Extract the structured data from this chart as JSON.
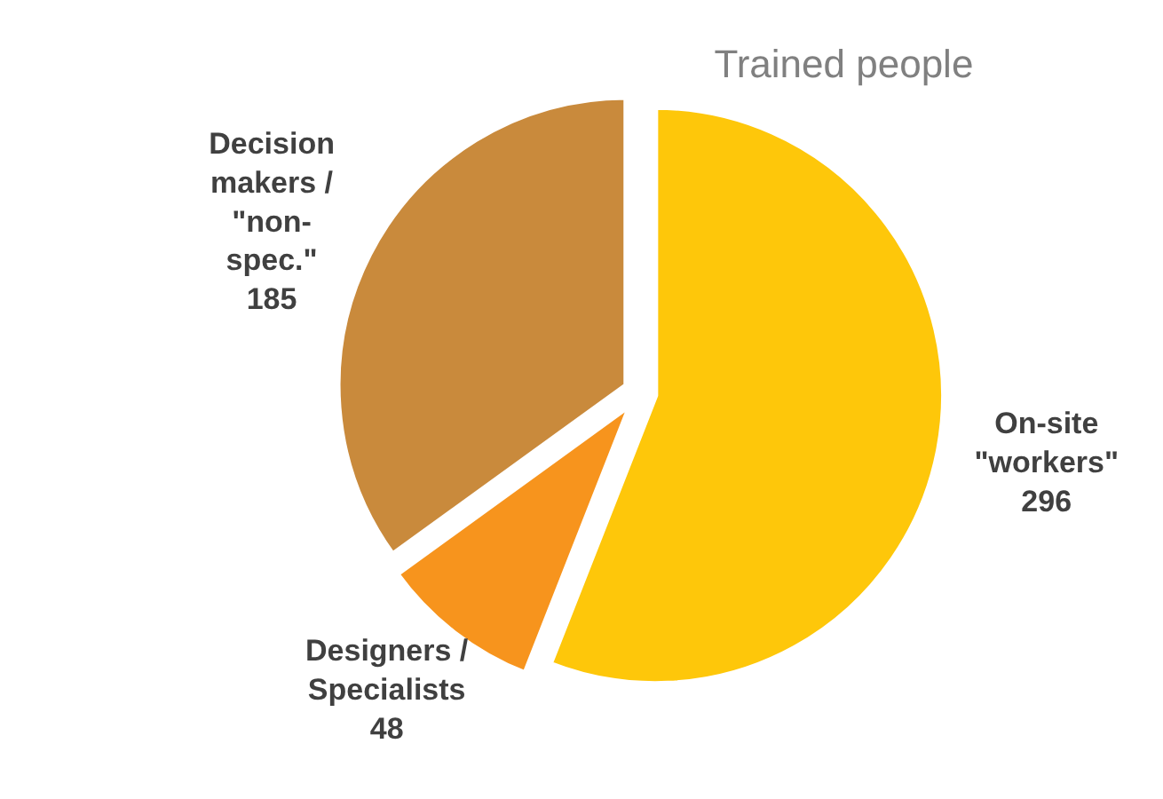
{
  "chart_data": {
    "type": "pie",
    "title": "Trained people",
    "categories": [
      "On-site\n\"workers\"",
      "Designers /\nSpecialists",
      "Decision\nmakers /\n\"non-\nspec.\""
    ],
    "values": [
      296,
      48,
      185
    ],
    "colors": [
      "#fec70a",
      "#f7941d",
      "#c98a3c"
    ],
    "data_labels": true
  }
}
